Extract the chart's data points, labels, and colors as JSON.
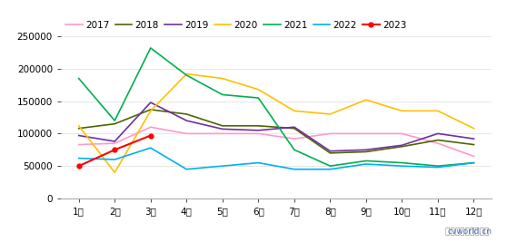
{
  "months": [
    "1月",
    "2月",
    "3月",
    "4月",
    "5月",
    "6月",
    "7月",
    "8月",
    "9月",
    "10月",
    "11月",
    "12月"
  ],
  "series": {
    "2017": [
      83000,
      85000,
      110000,
      100000,
      100000,
      100000,
      92000,
      100000,
      100000,
      100000,
      85000,
      65000
    ],
    "2018": [
      108000,
      115000,
      137000,
      130000,
      112000,
      112000,
      108000,
      70000,
      72000,
      80000,
      90000,
      83000
    ],
    "2019": [
      97000,
      88000,
      148000,
      120000,
      107000,
      105000,
      110000,
      73000,
      75000,
      82000,
      100000,
      92000
    ],
    "2020": [
      112000,
      40000,
      135000,
      192000,
      185000,
      168000,
      135000,
      130000,
      152000,
      135000,
      135000,
      108000
    ],
    "2021": [
      185000,
      120000,
      232000,
      190000,
      160000,
      155000,
      75000,
      50000,
      58000,
      55000,
      50000,
      55000
    ],
    "2022": [
      62000,
      60000,
      78000,
      45000,
      50000,
      55000,
      45000,
      45000,
      53000,
      50000,
      48000,
      55000
    ],
    "2023": [
      50000,
      75000,
      97000,
      null,
      null,
      null,
      null,
      null,
      null,
      null,
      null,
      null
    ]
  },
  "colors": {
    "2017": "#ff99cc",
    "2018": "#4d6600",
    "2019": "#7030a0",
    "2020": "#ffc000",
    "2021": "#00b050",
    "2022": "#00b0f0",
    "2023": "#ff0000"
  },
  "ylim": [
    0,
    250000
  ],
  "yticks": [
    0,
    50000,
    100000,
    150000,
    200000,
    250000
  ],
  "ytick_labels": [
    "0",
    "50000",
    "100000",
    "150000",
    "200000",
    "250000"
  ],
  "legend_years": [
    "2017",
    "2018",
    "2019",
    "2020",
    "2021",
    "2022",
    "2023"
  ],
  "tick_fontsize": 7.5,
  "legend_fontsize": 7.5,
  "watermark_main": "制图：第一商用车网 ",
  "watermark_url": "cvworld.cn",
  "background_color": "#ffffff"
}
